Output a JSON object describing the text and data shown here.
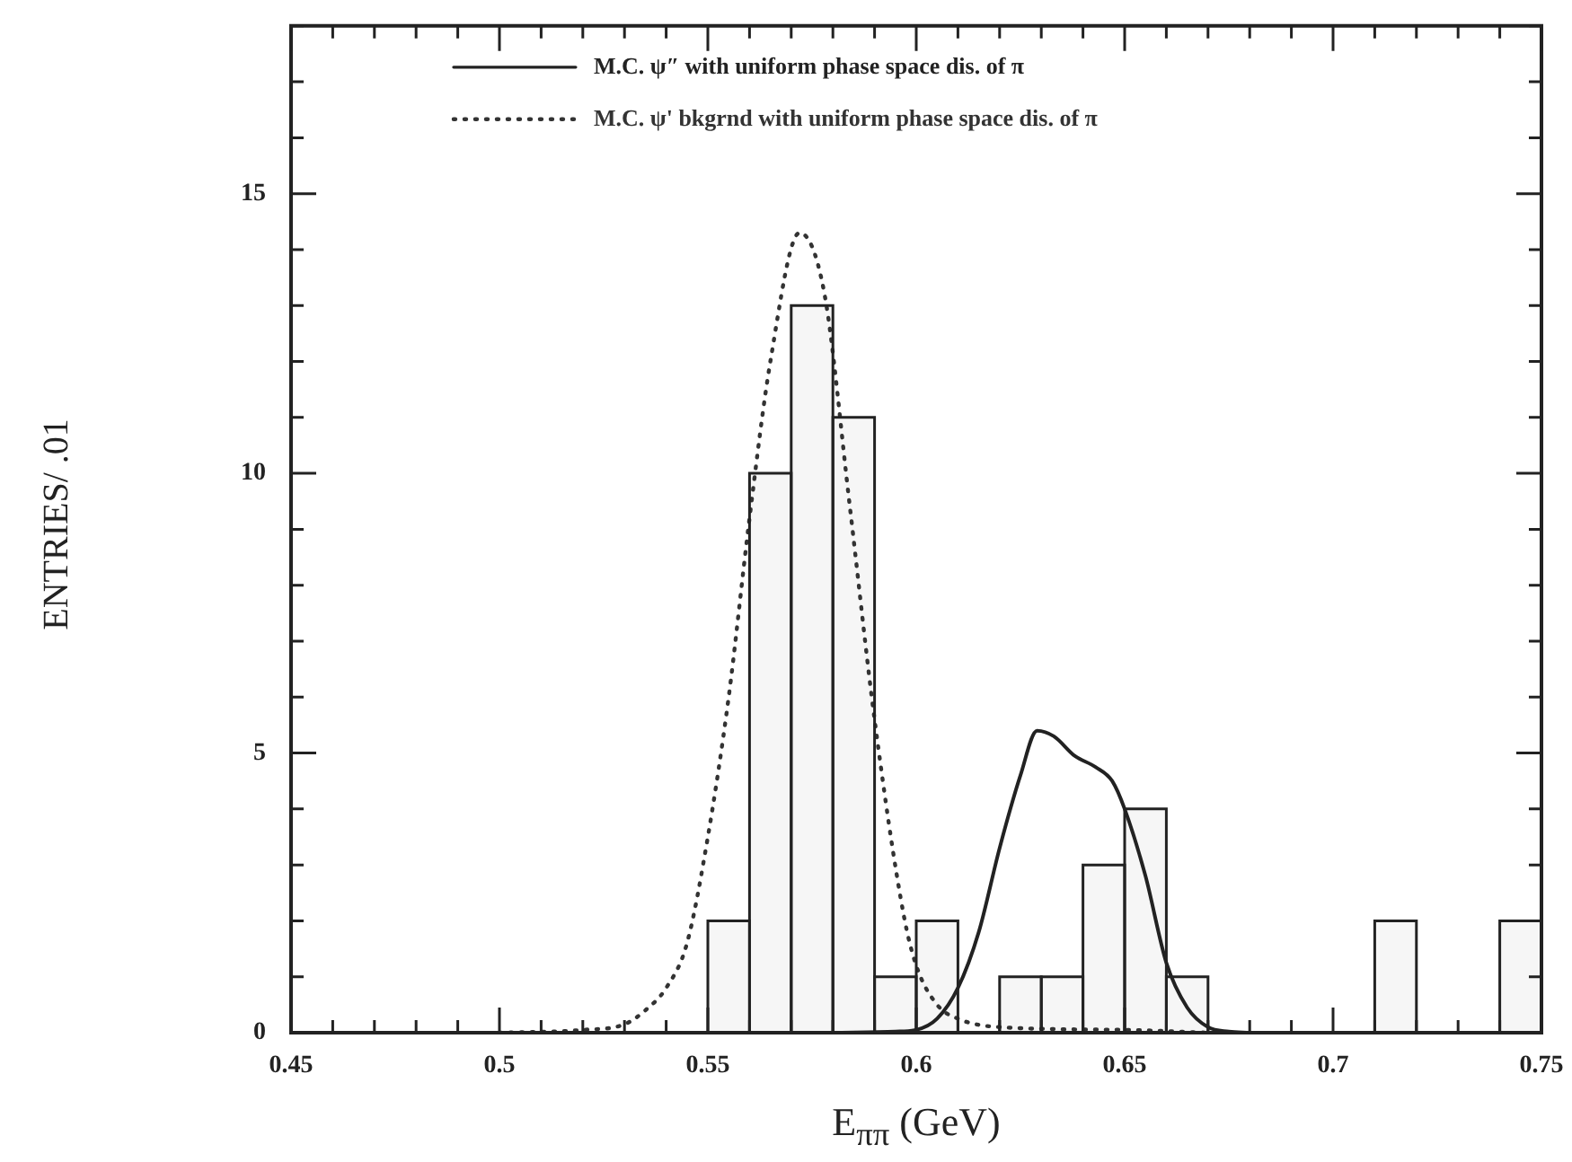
{
  "chart_data": {
    "type": "histogram",
    "xlabel": "E$_{ππ}$ (GeV)",
    "ylabel": "ENTRIES/ .01",
    "legend": "top",
    "grid": false,
    "xlim": [
      0.45,
      0.75
    ],
    "ylim": [
      0,
      18
    ],
    "xticks": [
      0.45,
      {
        "value": 0.46,
        "label": null
      },
      {
        "value": 0.47,
        "label": null
      },
      {
        "value": 0.48,
        "label": null
      },
      {
        "value": 0.49,
        "label": null
      },
      0.5,
      {
        "value": 0.51,
        "label": null
      },
      {
        "value": 0.52,
        "label": null
      },
      {
        "value": 0.53,
        "label": null
      },
      {
        "value": 0.54,
        "label": null
      },
      0.55,
      {
        "value": 0.56,
        "label": null
      },
      {
        "value": 0.57,
        "label": null
      },
      {
        "value": 0.58,
        "label": null
      },
      {
        "value": 0.59,
        "label": null
      },
      0.6,
      {
        "value": 0.61,
        "label": null
      },
      {
        "value": 0.62,
        "label": null
      },
      {
        "value": 0.63,
        "label": null
      },
      {
        "value": 0.64,
        "label": null
      },
      0.65,
      {
        "value": 0.66,
        "label": null
      },
      {
        "value": 0.67,
        "label": null
      },
      {
        "value": 0.68,
        "label": null
      },
      {
        "value": 0.69,
        "label": null
      },
      0.7,
      {
        "value": 0.71,
        "label": null
      },
      {
        "value": 0.72,
        "label": null
      },
      {
        "value": 0.73,
        "label": null
      },
      {
        "value": 0.74,
        "label": null
      },
      0.75
    ],
    "yticks": [
      0,
      {
        "value": 1,
        "label": null
      },
      {
        "value": 2,
        "label": null
      },
      {
        "value": 3,
        "label": null
      },
      {
        "value": 4,
        "label": null
      },
      5,
      {
        "value": 6,
        "label": null
      },
      {
        "value": 7,
        "label": null
      },
      {
        "value": 8,
        "label": null
      },
      {
        "value": 9,
        "label": null
      },
      10,
      {
        "value": 11,
        "label": null
      },
      {
        "value": 12,
        "label": null
      },
      {
        "value": 13,
        "label": null
      },
      {
        "value": 14,
        "label": null
      },
      15,
      {
        "value": 16,
        "label": null
      },
      {
        "value": 17,
        "label": null
      },
      {
        "value": 18,
        "label": null
      }
    ],
    "color": "#222222",
    "bins": [
      0.55,
      0.56,
      0.57,
      0.58,
      0.59,
      0.6,
      0.61,
      0.62,
      0.63,
      0.64,
      0.65,
      0.66,
      0.67,
      0.68,
      0.69,
      0.7,
      0.71,
      0.72,
      0.73,
      0.74,
      0.75
    ],
    "values": [
      2,
      10,
      13,
      11,
      1,
      2,
      0,
      1,
      1,
      3,
      4,
      1,
      0,
      0,
      0,
      0,
      2,
      0,
      0,
      2
    ],
    "series": [
      {
        "type": "line",
        "name": "M.C. ψ″ with uniform phase space dis. of π",
        "color": "#222222",
        "line_style": "solid",
        "x": [
          0.58,
          0.595,
          0.6,
          0.605,
          0.61,
          0.615,
          0.62,
          0.625,
          0.629,
          0.633,
          0.638,
          0.643,
          0.647,
          0.65,
          0.655,
          0.66,
          0.665,
          0.67,
          0.675,
          0.68
        ],
        "values": [
          0,
          0.02,
          0.05,
          0.25,
          0.8,
          1.8,
          3.3,
          4.6,
          5.4,
          5.3,
          4.95,
          4.75,
          4.5,
          4.0,
          2.8,
          1.25,
          0.45,
          0.1,
          0.02,
          0
        ]
      },
      {
        "type": "line",
        "name": "M.C. ψ' bkgrnd with uniform phase space dis. of π",
        "color": "#333333",
        "line_style": "dotted",
        "x": [
          0.5,
          0.52,
          0.53,
          0.535,
          0.54,
          0.545,
          0.55,
          0.555,
          0.56,
          0.565,
          0.572,
          0.578,
          0.584,
          0.59,
          0.597,
          0.6,
          0.605,
          0.61,
          0.62,
          0.65,
          0.67
        ],
        "values": [
          0,
          0.05,
          0.15,
          0.4,
          0.8,
          1.6,
          3.5,
          6,
          9.2,
          12,
          14.3,
          13.2,
          9.45,
          5.6,
          2.1,
          1.2,
          0.5,
          0.25,
          0.1,
          0.05,
          0
        ]
      }
    ]
  }
}
